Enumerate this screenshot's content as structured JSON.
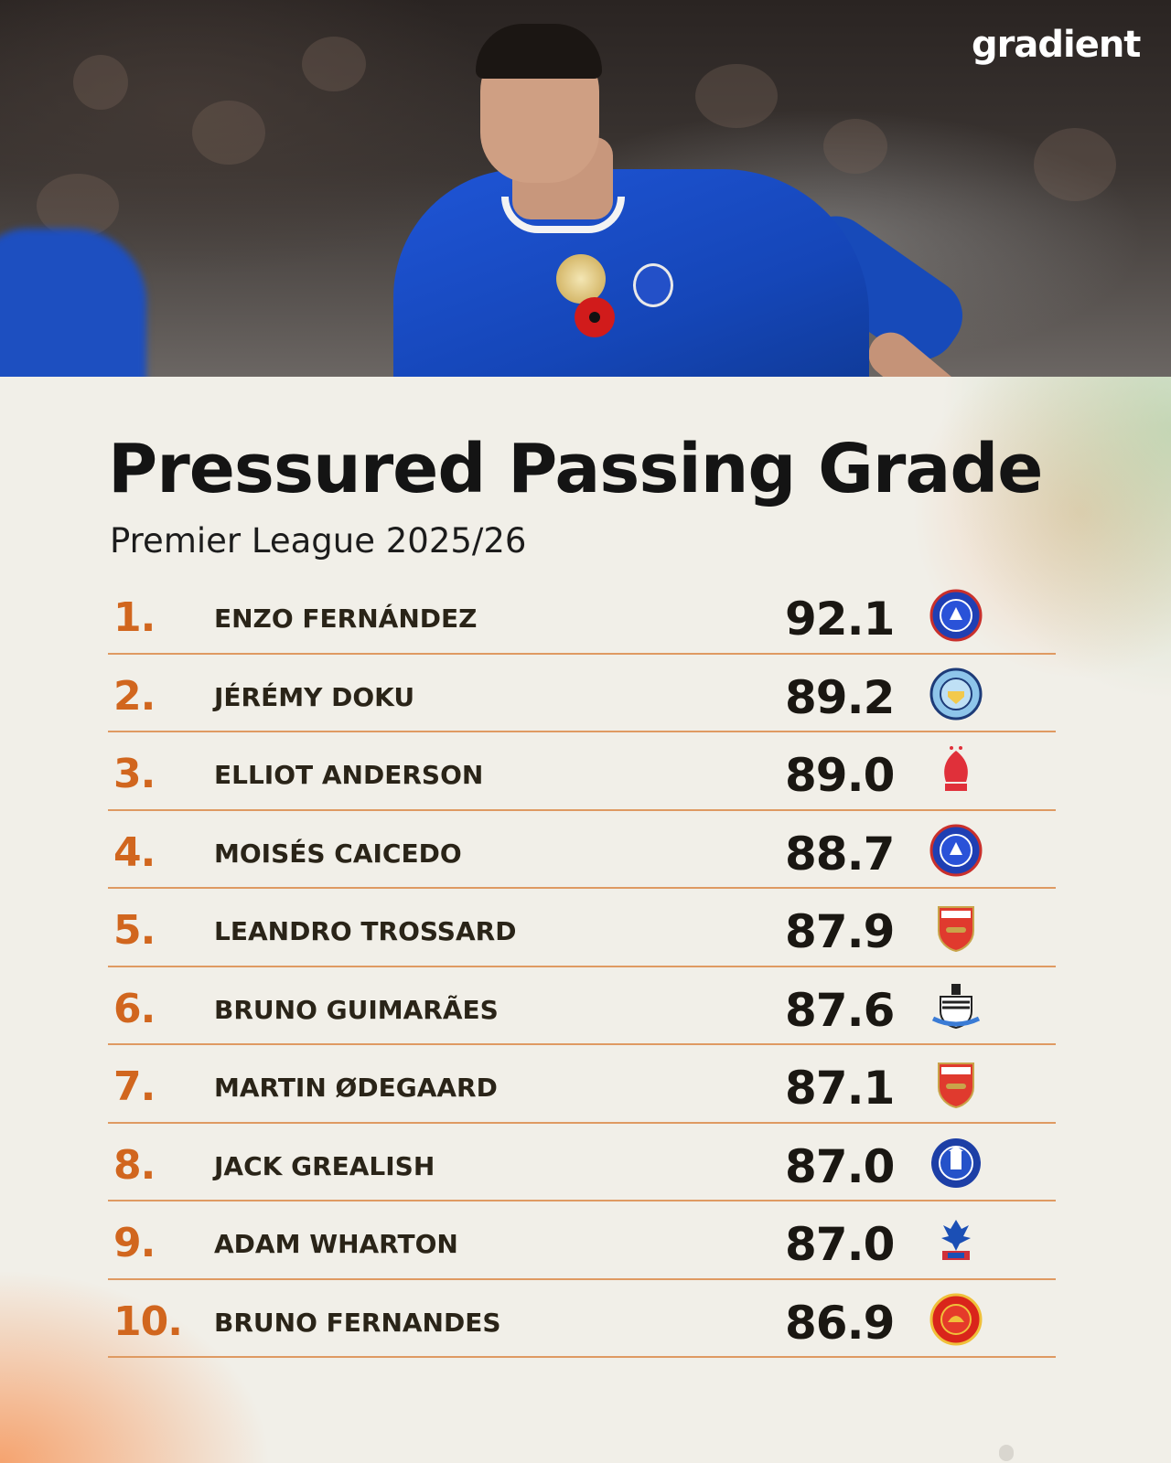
{
  "brand": {
    "logo_text": "gradient"
  },
  "header": {
    "title": "Pressured Passing Grade",
    "subtitle": "Premier League 2025/26"
  },
  "colors": {
    "accent": "#d1661e",
    "divider": "#df9a62",
    "text": "#1a1712",
    "background": "#f1efe8"
  },
  "rankings": [
    {
      "rank": "1.",
      "name": "ENZO FERNÁNDEZ",
      "score": "92.1",
      "club_icon": "chelsea-crest-icon"
    },
    {
      "rank": "2.",
      "name": "JÉRÉMY DOKU",
      "score": "89.2",
      "club_icon": "manchester-city-crest-icon"
    },
    {
      "rank": "3.",
      "name": "ELLIOT ANDERSON",
      "score": "89.0",
      "club_icon": "nottingham-forest-crest-icon"
    },
    {
      "rank": "4.",
      "name": "MOISÉS CAICEDO",
      "score": "88.7",
      "club_icon": "chelsea-crest-icon"
    },
    {
      "rank": "5.",
      "name": "LEANDRO TROSSARD",
      "score": "87.9",
      "club_icon": "arsenal-crest-icon"
    },
    {
      "rank": "6.",
      "name": "BRUNO GUIMARÃES",
      "score": "87.6",
      "club_icon": "newcastle-crest-icon"
    },
    {
      "rank": "7.",
      "name": "MARTIN ØDEGAARD",
      "score": "87.1",
      "club_icon": "arsenal-crest-icon"
    },
    {
      "rank": "8.",
      "name": "JACK GREALISH",
      "score": "87.0",
      "club_icon": "everton-crest-icon"
    },
    {
      "rank": "9.",
      "name": "ADAM WHARTON",
      "score": "87.0",
      "club_icon": "crystal-palace-crest-icon"
    },
    {
      "rank": "10.",
      "name": "BRUNO FERNANDES",
      "score": "86.9",
      "club_icon": "manchester-united-crest-icon"
    }
  ]
}
